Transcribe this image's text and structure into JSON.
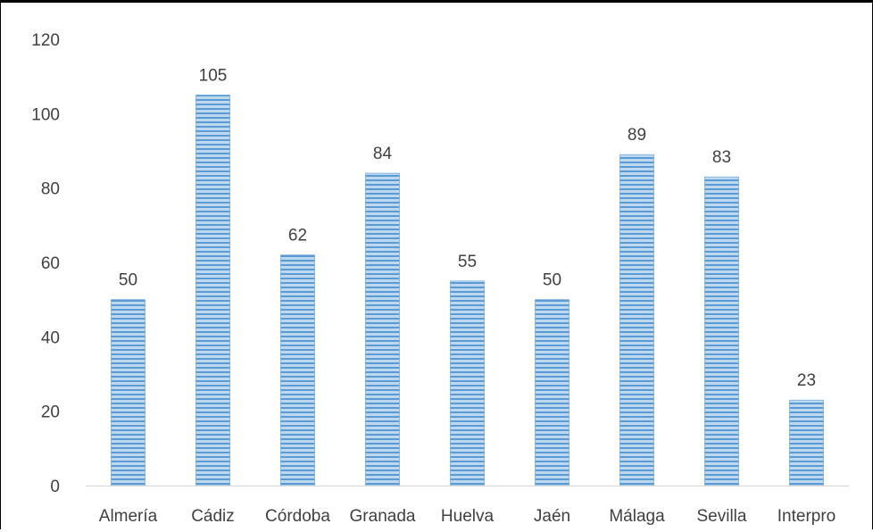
{
  "chart_data": {
    "type": "bar",
    "categories": [
      "Almería",
      "Cádiz",
      "Córdoba",
      "Granada",
      "Huelva",
      "Jaén",
      "Málaga",
      "Sevilla",
      "Interpro"
    ],
    "values": [
      50,
      105,
      62,
      84,
      55,
      50,
      89,
      83,
      23
    ],
    "data_labels": [
      "50",
      "105",
      "62",
      "84",
      "55",
      "50",
      "89",
      "83",
      "23"
    ],
    "title": "",
    "xlabel": "",
    "ylabel": "",
    "ylim": [
      0,
      120
    ],
    "yticks": [
      0,
      20,
      40,
      60,
      80,
      100,
      120
    ],
    "ytick_labels": [
      "0",
      "20",
      "40",
      "60",
      "80",
      "100",
      "120"
    ],
    "grid": false,
    "legend": "none",
    "bar_fill_pattern": "horizontal-stripes",
    "colors": {
      "bar_stripe_light": "#bdd7ee",
      "bar_stripe_dark": "#5b9bd5",
      "axis": "#d9d9d9",
      "text": "#404040"
    }
  }
}
